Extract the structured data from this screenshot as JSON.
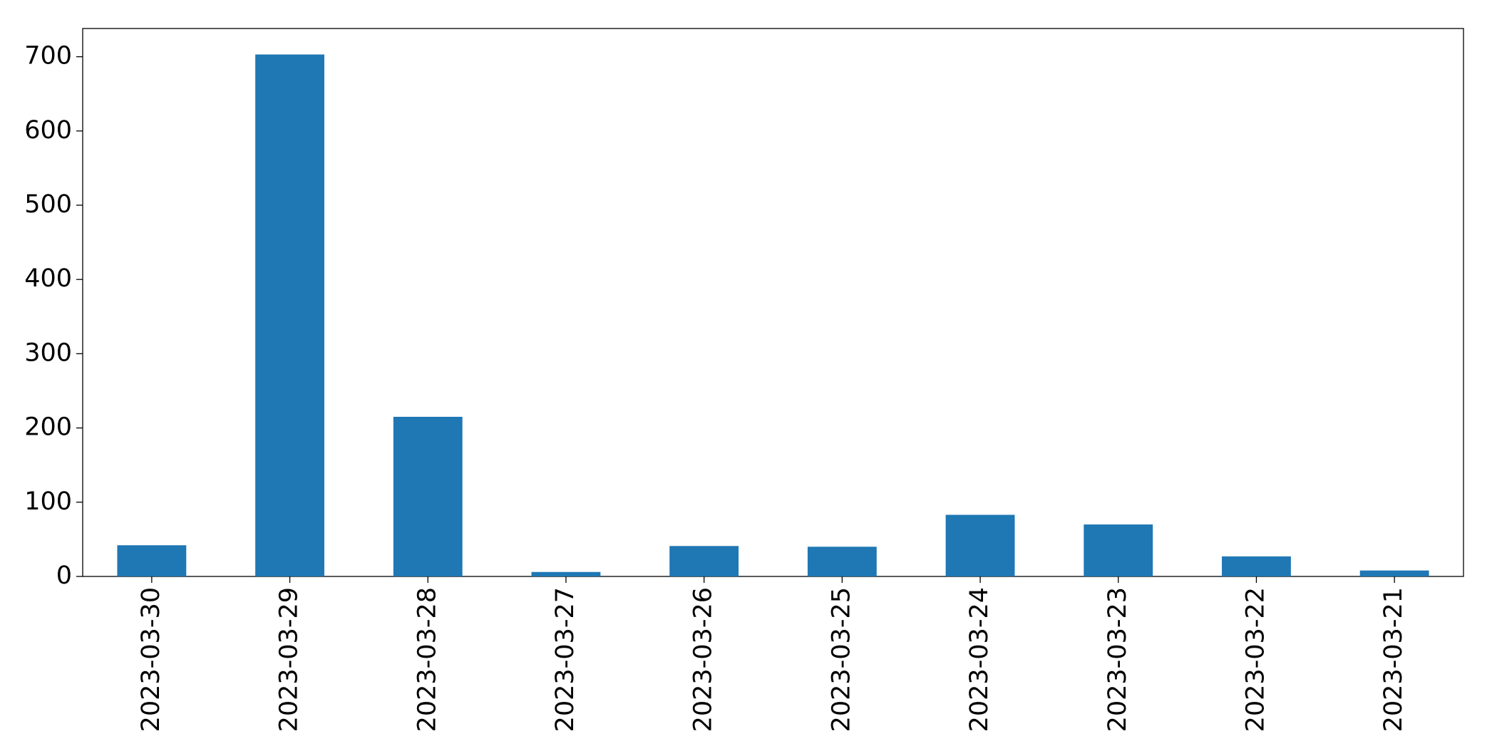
{
  "chart_data": {
    "type": "bar",
    "categories": [
      "2023-03-30",
      "2023-03-29",
      "2023-03-28",
      "2023-03-27",
      "2023-03-26",
      "2023-03-25",
      "2023-03-24",
      "2023-03-23",
      "2023-03-22",
      "2023-03-21"
    ],
    "values": [
      42,
      703,
      215,
      6,
      41,
      40,
      83,
      70,
      27,
      8
    ],
    "color": "#1f77b4",
    "ylim": [
      0,
      738
    ],
    "yticks": [
      0,
      100,
      200,
      300,
      400,
      500,
      600,
      700
    ],
    "grid": false
  }
}
